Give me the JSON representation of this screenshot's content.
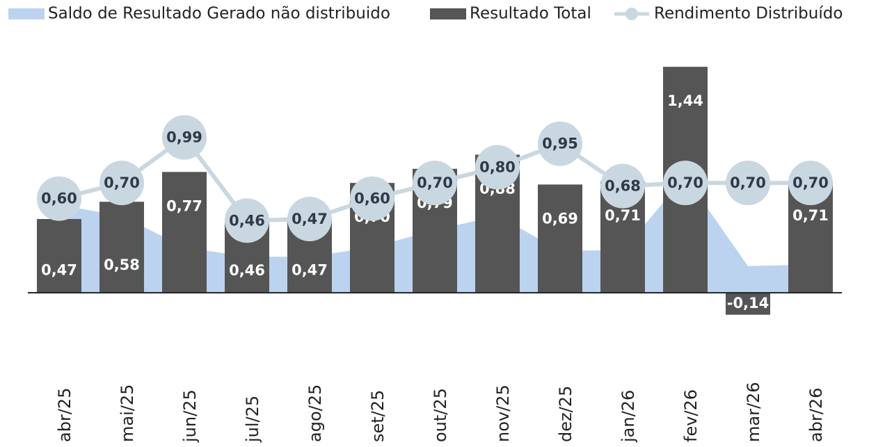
{
  "chart_data": {
    "type": "combo",
    "categories": [
      "abr/25",
      "mai/25",
      "jun/25",
      "jul/25",
      "ago/25",
      "set/25",
      "out/25",
      "nov/25",
      "dez/25",
      "jan/26",
      "fev/26",
      "mar/26",
      "abr/26"
    ],
    "series": [
      {
        "name": "Saldo de Resultado Gerado não distribuido",
        "type": "area",
        "color": "#bcd3ef",
        "values": [
          0.56,
          0.49,
          0.29,
          0.23,
          0.23,
          0.29,
          0.4,
          0.49,
          0.27,
          0.27,
          0.74,
          0.17,
          0.18
        ]
      },
      {
        "name": "Resultado Total",
        "type": "bar",
        "color": "#555555",
        "values": [
          0.47,
          0.58,
          0.77,
          0.46,
          0.47,
          0.7,
          0.79,
          0.88,
          0.69,
          0.71,
          1.44,
          -0.14,
          0.71
        ],
        "value_labels": [
          "0,47",
          "0,58",
          "0,77",
          "0,46",
          "0,47",
          "0,70",
          "0,79",
          "0,88",
          "0,69",
          "0,71",
          "1,44",
          "-0,14",
          "0,71"
        ]
      },
      {
        "name": "Rendimento Distribuído",
        "type": "line",
        "color": "#c9d7e1",
        "values": [
          0.6,
          0.7,
          0.99,
          0.46,
          0.47,
          0.6,
          0.7,
          0.8,
          0.95,
          0.68,
          0.7,
          0.7,
          0.7
        ],
        "value_labels": [
          "0,60",
          "0,70",
          "0,99",
          "0,46",
          "0,47",
          "0,60",
          "0,70",
          "0,80",
          "0,95",
          "0,68",
          "0,70",
          "0,70",
          "0,70"
        ]
      }
    ],
    "ylim": [
      -0.5,
      1.6
    ]
  }
}
